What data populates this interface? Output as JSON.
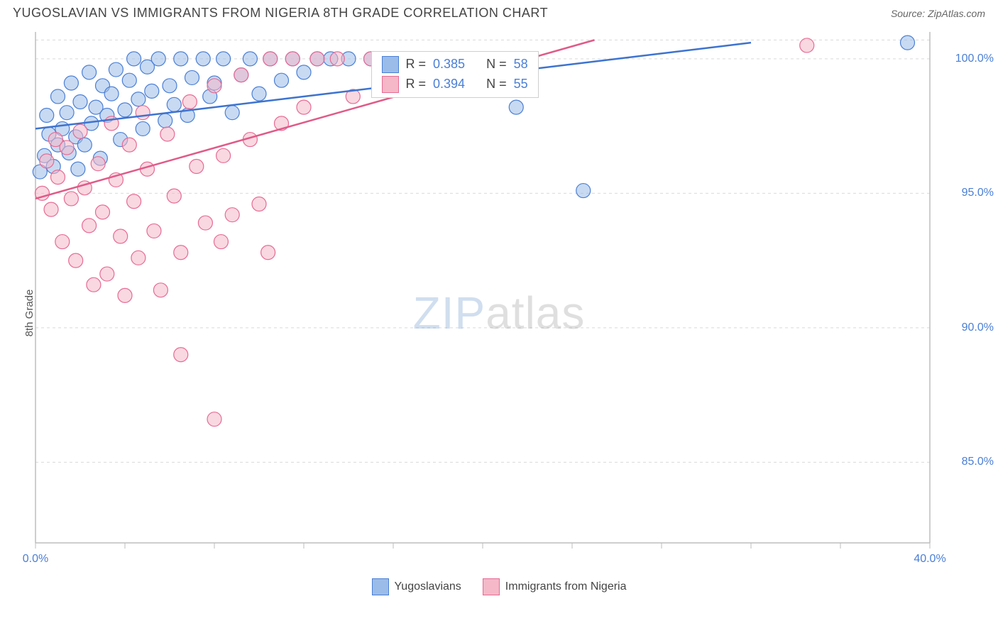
{
  "header": {
    "title": "YUGOSLAVIAN VS IMMIGRANTS FROM NIGERIA 8TH GRADE CORRELATION CHART",
    "source": "Source: ZipAtlas.com"
  },
  "axes": {
    "ylabel": "8th Grade",
    "x_min": 0.0,
    "x_max": 40.0,
    "y_min": 82.0,
    "y_max": 101.0,
    "x_ticks": [
      0,
      4,
      8,
      12,
      16,
      20,
      24,
      28,
      32,
      36,
      40
    ],
    "y_ticks": [
      85,
      90,
      95,
      100
    ],
    "x_tick_labels": {
      "0": "0.0%",
      "40": "40.0%"
    },
    "y_tick_labels": {
      "85": "85.0%",
      "90": "90.0%",
      "95": "95.0%",
      "100": "100.0%"
    }
  },
  "style": {
    "background": "#ffffff",
    "grid_color": "#d9d9d9",
    "grid_dash": "4,4",
    "axis_color": "#bdbdbd",
    "marker_radius": 10,
    "marker_opacity": 0.55,
    "line_width": 2.5
  },
  "series": [
    {
      "key": "yugoslavians",
      "label": "Yugoslavians",
      "fill": "#9bbce8",
      "stroke": "#4a7fd6",
      "line_color": "#3d73cf",
      "r_value": "0.385",
      "n_value": "58",
      "trend": {
        "x1": 0,
        "y1": 97.4,
        "x2": 32,
        "y2": 100.6
      },
      "points": [
        [
          0.2,
          95.8
        ],
        [
          0.4,
          96.4
        ],
        [
          0.5,
          97.9
        ],
        [
          0.6,
          97.2
        ],
        [
          0.8,
          96.0
        ],
        [
          1.0,
          98.6
        ],
        [
          1.0,
          96.8
        ],
        [
          1.2,
          97.4
        ],
        [
          1.4,
          98.0
        ],
        [
          1.5,
          96.5
        ],
        [
          1.6,
          99.1
        ],
        [
          1.8,
          97.1
        ],
        [
          1.9,
          95.9
        ],
        [
          2.0,
          98.4
        ],
        [
          2.2,
          96.8
        ],
        [
          2.4,
          99.5
        ],
        [
          2.5,
          97.6
        ],
        [
          2.7,
          98.2
        ],
        [
          2.9,
          96.3
        ],
        [
          3.0,
          99.0
        ],
        [
          3.2,
          97.9
        ],
        [
          3.4,
          98.7
        ],
        [
          3.6,
          99.6
        ],
        [
          3.8,
          97.0
        ],
        [
          4.0,
          98.1
        ],
        [
          4.2,
          99.2
        ],
        [
          4.4,
          100.0
        ],
        [
          4.6,
          98.5
        ],
        [
          4.8,
          97.4
        ],
        [
          5.0,
          99.7
        ],
        [
          5.2,
          98.8
        ],
        [
          5.5,
          100.0
        ],
        [
          5.8,
          97.7
        ],
        [
          6.0,
          99.0
        ],
        [
          6.2,
          98.3
        ],
        [
          6.5,
          100.0
        ],
        [
          6.8,
          97.9
        ],
        [
          7.0,
          99.3
        ],
        [
          7.5,
          100.0
        ],
        [
          7.8,
          98.6
        ],
        [
          8.0,
          99.1
        ],
        [
          8.4,
          100.0
        ],
        [
          8.8,
          98.0
        ],
        [
          9.2,
          99.4
        ],
        [
          9.6,
          100.0
        ],
        [
          10.0,
          98.7
        ],
        [
          10.5,
          100.0
        ],
        [
          11.0,
          99.2
        ],
        [
          11.5,
          100.0
        ],
        [
          12.0,
          99.5
        ],
        [
          12.6,
          100.0
        ],
        [
          13.2,
          100.0
        ],
        [
          14.0,
          100.0
        ],
        [
          15.0,
          100.0
        ],
        [
          16.0,
          100.0
        ],
        [
          21.5,
          98.2
        ],
        [
          24.5,
          95.1
        ],
        [
          39.0,
          100.6
        ]
      ]
    },
    {
      "key": "nigeria",
      "label": "Immigrants from Nigeria",
      "fill": "#f4b8c8",
      "stroke": "#e76a94",
      "line_color": "#e05a88",
      "r_value": "0.394",
      "n_value": "55",
      "trend": {
        "x1": 0,
        "y1": 94.8,
        "x2": 25,
        "y2": 100.7
      },
      "points": [
        [
          0.3,
          95.0
        ],
        [
          0.5,
          96.2
        ],
        [
          0.7,
          94.4
        ],
        [
          0.9,
          97.0
        ],
        [
          1.0,
          95.6
        ],
        [
          1.2,
          93.2
        ],
        [
          1.4,
          96.7
        ],
        [
          1.6,
          94.8
        ],
        [
          1.8,
          92.5
        ],
        [
          2.0,
          97.3
        ],
        [
          2.2,
          95.2
        ],
        [
          2.4,
          93.8
        ],
        [
          2.6,
          91.6
        ],
        [
          2.8,
          96.1
        ],
        [
          3.0,
          94.3
        ],
        [
          3.2,
          92.0
        ],
        [
          3.4,
          97.6
        ],
        [
          3.6,
          95.5
        ],
        [
          3.8,
          93.4
        ],
        [
          4.0,
          91.2
        ],
        [
          4.2,
          96.8
        ],
        [
          4.4,
          94.7
        ],
        [
          4.6,
          92.6
        ],
        [
          4.8,
          98.0
        ],
        [
          5.0,
          95.9
        ],
        [
          5.3,
          93.6
        ],
        [
          5.6,
          91.4
        ],
        [
          5.9,
          97.2
        ],
        [
          6.2,
          94.9
        ],
        [
          6.5,
          92.8
        ],
        [
          6.5,
          89.0
        ],
        [
          6.9,
          98.4
        ],
        [
          7.2,
          96.0
        ],
        [
          7.6,
          93.9
        ],
        [
          8.0,
          99.0
        ],
        [
          8.0,
          86.6
        ],
        [
          8.3,
          93.2
        ],
        [
          8.4,
          96.4
        ],
        [
          8.8,
          94.2
        ],
        [
          9.2,
          99.4
        ],
        [
          9.6,
          97.0
        ],
        [
          10.0,
          94.6
        ],
        [
          10.4,
          92.8
        ],
        [
          10.5,
          100.0
        ],
        [
          11.0,
          97.6
        ],
        [
          11.5,
          100.0
        ],
        [
          12.0,
          98.2
        ],
        [
          12.6,
          100.0
        ],
        [
          13.5,
          100.0
        ],
        [
          14.2,
          98.6
        ],
        [
          15.0,
          100.0
        ],
        [
          16.0,
          100.0
        ],
        [
          17.0,
          100.0
        ],
        [
          18.5,
          100.0
        ],
        [
          34.5,
          100.5
        ]
      ]
    }
  ],
  "watermark": {
    "part1": "ZIP",
    "part2": "atlas"
  },
  "stat_labels": {
    "r": "R =",
    "n": "N ="
  }
}
